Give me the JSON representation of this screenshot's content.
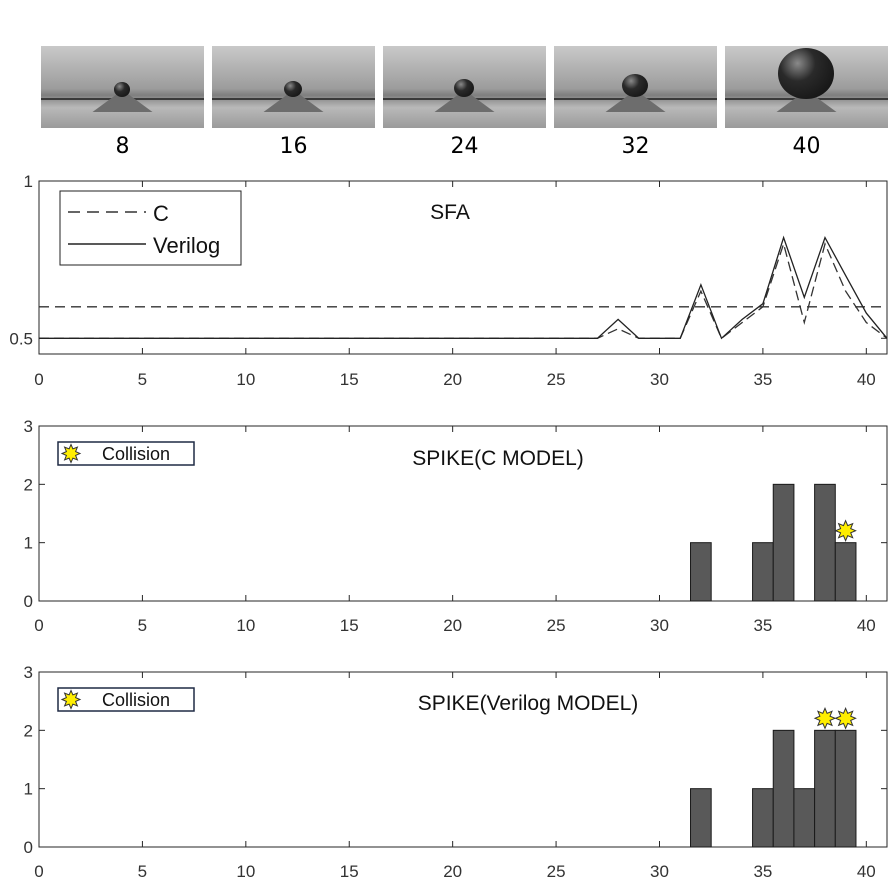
{
  "frames": [
    {
      "label": "8",
      "ball_size": 0.15
    },
    {
      "label": "16",
      "ball_size": 0.17
    },
    {
      "label": "24",
      "ball_size": 0.22
    },
    {
      "label": "32",
      "ball_size": 0.35
    },
    {
      "label": "40",
      "ball_size": 1.0
    }
  ],
  "chart_data": [
    {
      "type": "line",
      "title": "SFA",
      "xlim": [
        0,
        41
      ],
      "ylim": [
        0.45,
        1
      ],
      "x_ticks": [
        "0",
        "5",
        "10",
        "15",
        "20",
        "25",
        "30",
        "35",
        "40"
      ],
      "y_ticks": [
        {
          "value": 0.5,
          "label": "0.5"
        },
        {
          "value": 1,
          "label": "1"
        }
      ],
      "legend": {
        "position": "top-left"
      },
      "threshold": {
        "value": 0.6,
        "style": "dashed"
      },
      "series": [
        {
          "name": "C",
          "style": "dashed",
          "color": "#333333",
          "x": [
            0,
            27,
            28,
            29,
            30,
            31,
            32,
            33,
            34,
            35,
            36,
            37,
            38,
            39,
            40,
            41
          ],
          "y": [
            0.5,
            0.5,
            0.53,
            0.5,
            0.5,
            0.5,
            0.65,
            0.5,
            0.55,
            0.6,
            0.8,
            0.55,
            0.8,
            0.65,
            0.55,
            0.5
          ]
        },
        {
          "name": "Verilog",
          "style": "solid",
          "color": "#222222",
          "x": [
            0,
            27,
            28,
            29,
            30,
            31,
            32,
            33,
            34,
            35,
            36,
            37,
            38,
            39,
            40,
            41
          ],
          "y": [
            0.5,
            0.5,
            0.56,
            0.5,
            0.5,
            0.5,
            0.67,
            0.5,
            0.56,
            0.61,
            0.82,
            0.63,
            0.82,
            0.7,
            0.58,
            0.5
          ]
        }
      ]
    },
    {
      "type": "bar",
      "title": "SPIKE(C MODEL)",
      "xlim": [
        0,
        41
      ],
      "ylim": [
        0,
        3
      ],
      "x_ticks": [
        "0",
        "5",
        "10",
        "15",
        "20",
        "25",
        "30",
        "35",
        "40"
      ],
      "y_ticks": [
        {
          "value": 0,
          "label": "0"
        },
        {
          "value": 1,
          "label": "1"
        },
        {
          "value": 2,
          "label": "2"
        },
        {
          "value": 3,
          "label": "3"
        }
      ],
      "bar_color": "#595959",
      "bars": [
        {
          "x": 32,
          "y": 1
        },
        {
          "x": 35,
          "y": 1
        },
        {
          "x": 36,
          "y": 2
        },
        {
          "x": 38,
          "y": 2
        },
        {
          "x": 39,
          "y": 1
        }
      ],
      "collisions": [
        39
      ],
      "legend": {
        "label": "Collision",
        "position": "top-left",
        "marker_color": "#ffee00"
      }
    },
    {
      "type": "bar",
      "title": "SPIKE(Verilog MODEL)",
      "xlim": [
        0,
        41
      ],
      "ylim": [
        0,
        3
      ],
      "x_ticks": [
        "0",
        "5",
        "10",
        "15",
        "20",
        "25",
        "30",
        "35",
        "40"
      ],
      "y_ticks": [
        {
          "value": 0,
          "label": "0"
        },
        {
          "value": 1,
          "label": "1"
        },
        {
          "value": 2,
          "label": "2"
        },
        {
          "value": 3,
          "label": "3"
        }
      ],
      "bar_color": "#595959",
      "bars": [
        {
          "x": 32,
          "y": 1
        },
        {
          "x": 35,
          "y": 1
        },
        {
          "x": 36,
          "y": 2
        },
        {
          "x": 37,
          "y": 1
        },
        {
          "x": 38,
          "y": 2
        },
        {
          "x": 39,
          "y": 2
        }
      ],
      "collisions": [
        38,
        39
      ],
      "legend": {
        "label": "Collision",
        "position": "top-left",
        "marker_color": "#ffee00"
      }
    }
  ]
}
